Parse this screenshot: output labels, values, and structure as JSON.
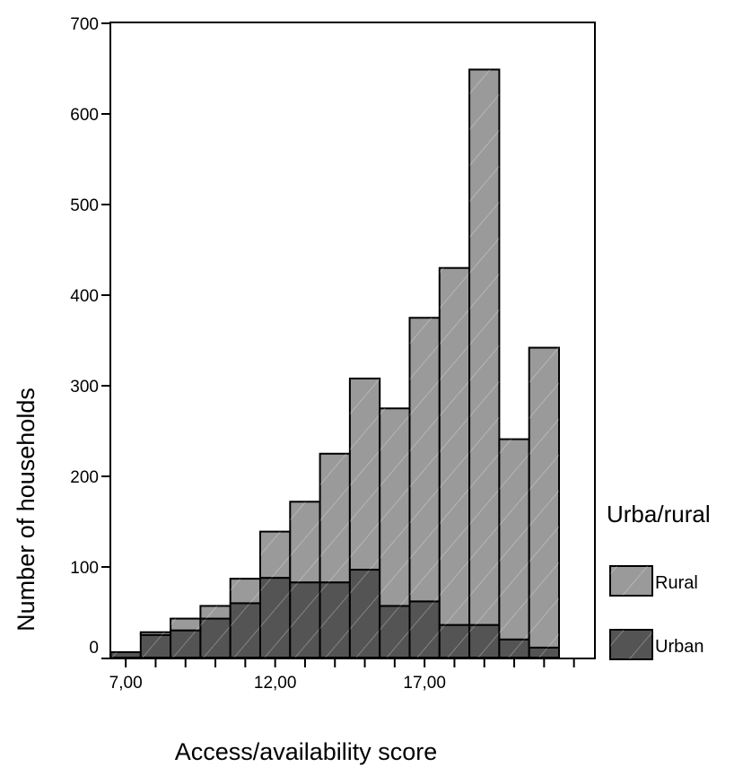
{
  "chart_data": {
    "type": "bar",
    "stacked": true,
    "xlabel": "Access/availability score",
    "ylabel": "Number of households",
    "ylim": [
      0,
      700
    ],
    "yticks": [
      0,
      100,
      200,
      300,
      400,
      500,
      600,
      700
    ],
    "xtick_labels": [
      "7,00",
      "12,00",
      "17,00"
    ],
    "x": [
      7,
      8,
      9,
      10,
      11,
      12,
      13,
      14,
      15,
      16,
      17,
      18,
      19,
      20,
      21
    ],
    "series": [
      {
        "name": "Urban",
        "color": "#545454",
        "values": [
          6,
          25,
          30,
          43,
          60,
          88,
          83,
          83,
          97,
          57,
          62,
          36,
          36,
          20,
          11
        ]
      },
      {
        "name": "Rural",
        "color": "#9a9a9a",
        "values": [
          0,
          3,
          13,
          14,
          27,
          51,
          89,
          142,
          211,
          218,
          313,
          394,
          613,
          221,
          331
        ]
      }
    ],
    "legend": {
      "title": "Urba/rural",
      "position": "right"
    },
    "grid": false
  }
}
